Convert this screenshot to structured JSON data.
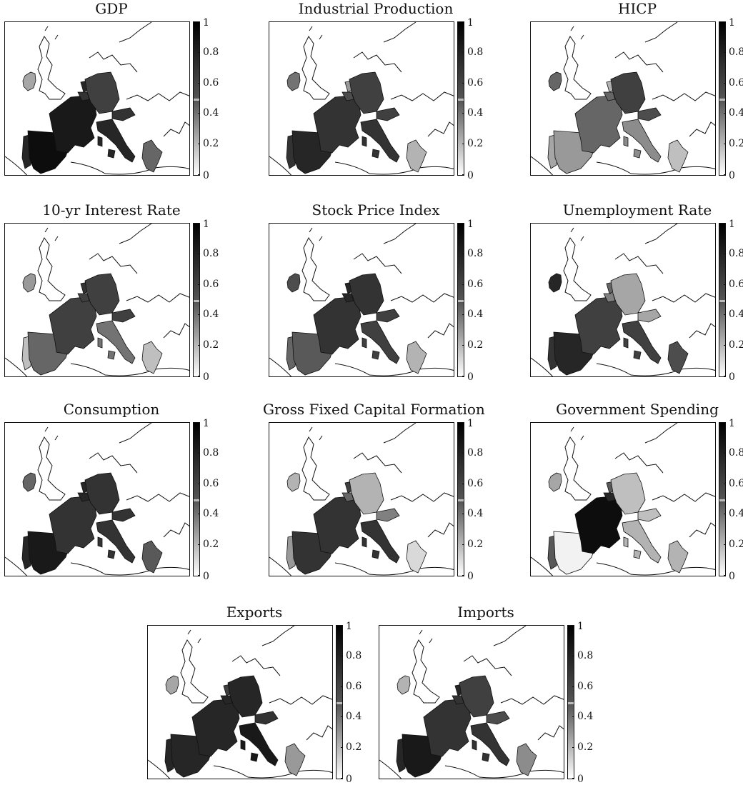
{
  "colorbar": {
    "min": 0,
    "max": 1,
    "ticks": [
      "1",
      "0.8",
      "0.6",
      "0.4",
      "0.2",
      "0"
    ],
    "midline_value": 0.5
  },
  "countries": [
    "Spain",
    "Portugal",
    "France",
    "Germany",
    "Italy",
    "Greece",
    "Ireland",
    "Netherlands",
    "Belgium",
    "Austria"
  ],
  "panels": [
    {
      "title": "GDP",
      "values": {
        "Spain": 0.95,
        "Portugal": 0.85,
        "France": 0.9,
        "Germany": 0.75,
        "Italy": 0.85,
        "Greece": 0.6,
        "Ireland": 0.35,
        "Netherlands": 0.85,
        "Belgium": 0.8,
        "Austria": 0.8
      }
    },
    {
      "title": "Industrial Production",
      "values": {
        "Spain": 0.85,
        "Portugal": 0.8,
        "France": 0.8,
        "Germany": 0.75,
        "Italy": 0.8,
        "Greece": 0.3,
        "Ireland": 0.55,
        "Netherlands": 0.4,
        "Belgium": 0.7,
        "Austria": 0.75
      }
    },
    {
      "title": "HICP",
      "values": {
        "Spain": 0.4,
        "Portugal": 0.35,
        "France": 0.6,
        "Germany": 0.75,
        "Italy": 0.45,
        "Greece": 0.25,
        "Ireland": 0.6,
        "Netherlands": 0.3,
        "Belgium": 0.6,
        "Austria": 0.7
      }
    },
    {
      "title": "10-yr Interest Rate",
      "values": {
        "Spain": 0.6,
        "Portugal": 0.25,
        "France": 0.75,
        "Germany": 0.75,
        "Italy": 0.55,
        "Greece": 0.25,
        "Ireland": 0.4,
        "Netherlands": 0.8,
        "Belgium": 0.75,
        "Austria": 0.75
      }
    },
    {
      "title": "Stock Price Index",
      "values": {
        "Spain": 0.65,
        "Portugal": 0.6,
        "France": 0.8,
        "Germany": 0.8,
        "Italy": 0.75,
        "Greece": 0.3,
        "Ireland": 0.7,
        "Netherlands": 0.85,
        "Belgium": 0.85,
        "Austria": 0.75
      }
    },
    {
      "title": "Unemployment Rate",
      "values": {
        "Spain": 0.85,
        "Portugal": 0.8,
        "France": 0.75,
        "Germany": 0.35,
        "Italy": 0.75,
        "Greece": 0.7,
        "Ireland": 0.85,
        "Netherlands": 0.6,
        "Belgium": 0.5,
        "Austria": 0.35
      }
    },
    {
      "title": "Consumption",
      "values": {
        "Spain": 0.9,
        "Portugal": 0.85,
        "France": 0.8,
        "Germany": 0.8,
        "Italy": 0.8,
        "Greece": 0.65,
        "Ireland": 0.6,
        "Netherlands": 0.85,
        "Belgium": 0.85,
        "Austria": 0.8
      }
    },
    {
      "title": "Gross Fixed Capital Formation",
      "values": {
        "Spain": 0.8,
        "Portugal": 0.4,
        "France": 0.8,
        "Germany": 0.3,
        "Italy": 0.8,
        "Greece": 0.15,
        "Ireland": 0.3,
        "Netherlands": 0.75,
        "Belgium": 0.6,
        "Austria": 0.5
      }
    },
    {
      "title": "Government Spending",
      "values": {
        "Spain": 0.05,
        "Portugal": 0.65,
        "France": 0.95,
        "Germany": 0.25,
        "Italy": 0.3,
        "Greece": 0.3,
        "Ireland": 0.35,
        "Netherlands": 0.65,
        "Belgium": 0.85,
        "Austria": 0.25
      }
    },
    {
      "title": "Exports",
      "values": {
        "Spain": 0.85,
        "Portugal": 0.85,
        "France": 0.85,
        "Germany": 0.85,
        "Italy": 0.9,
        "Greece": 0.4,
        "Ireland": 0.35,
        "Netherlands": 0.75,
        "Belgium": 0.85,
        "Austria": 0.8
      }
    },
    {
      "title": "Imports",
      "values": {
        "Spain": 0.9,
        "Portugal": 0.85,
        "France": 0.8,
        "Germany": 0.75,
        "Italy": 0.8,
        "Greece": 0.45,
        "Ireland": 0.3,
        "Netherlands": 0.85,
        "Belgium": 0.8,
        "Austria": 0.7
      }
    }
  ]
}
